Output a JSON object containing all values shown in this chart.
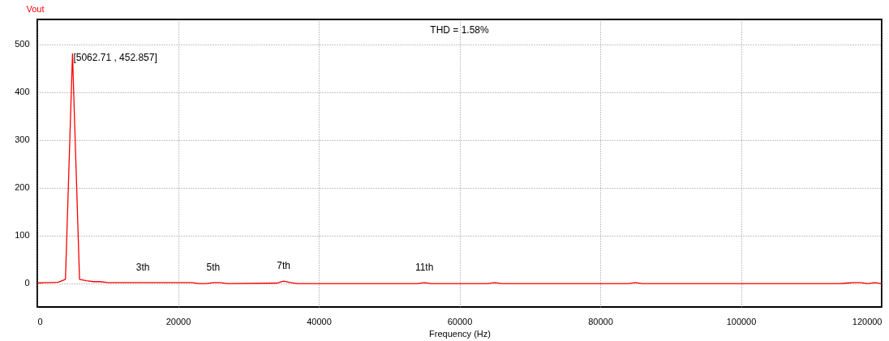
{
  "chart_data": {
    "type": "line",
    "xlabel": "Frequency (Hz)",
    "ylabel": "Vout",
    "x": [
      0,
      1000,
      2000,
      3000,
      4000,
      5000,
      6000,
      7000,
      8000,
      9000,
      10000,
      14000,
      18000,
      22000,
      23000,
      24000,
      25000,
      26000,
      27000,
      34000,
      35000,
      36000,
      37000,
      54000,
      55000,
      56000,
      64000,
      65000,
      66000,
      84000,
      85000,
      86000,
      114000,
      115000,
      116000,
      117000,
      118000,
      119000,
      120000
    ],
    "series": [
      {
        "color": "#ff0000",
        "values": [
          0,
          1,
          1,
          2,
          8,
          480,
          8,
          5,
          3,
          3,
          1,
          1,
          1,
          1,
          -1,
          -1,
          1,
          1,
          -1,
          0,
          4,
          1,
          -1,
          -1,
          1,
          -1,
          -1,
          1,
          -1,
          -1,
          1,
          -1,
          -1,
          0,
          1,
          1,
          -1,
          1,
          -1
        ]
      }
    ],
    "xlim": [
      0,
      120000
    ],
    "xticks": [
      0,
      20000,
      40000,
      60000,
      80000,
      100000,
      120000
    ],
    "ylim": [
      -50,
      552
    ],
    "yticks": [
      0,
      100,
      200,
      300,
      400,
      500
    ],
    "grid": true,
    "line_style": "solid",
    "marker": "none",
    "annotations": [
      "THD = 1.58%",
      "[5062.71 , 452.857]",
      {
        "text": "3th",
        "x": 15000,
        "y": 1
      },
      {
        "text": "5th",
        "x": 25000,
        "y": 1
      },
      {
        "text": "7th",
        "x": 35000,
        "y": 4
      },
      {
        "text": "11th",
        "x": 55000,
        "y": 1
      }
    ]
  }
}
